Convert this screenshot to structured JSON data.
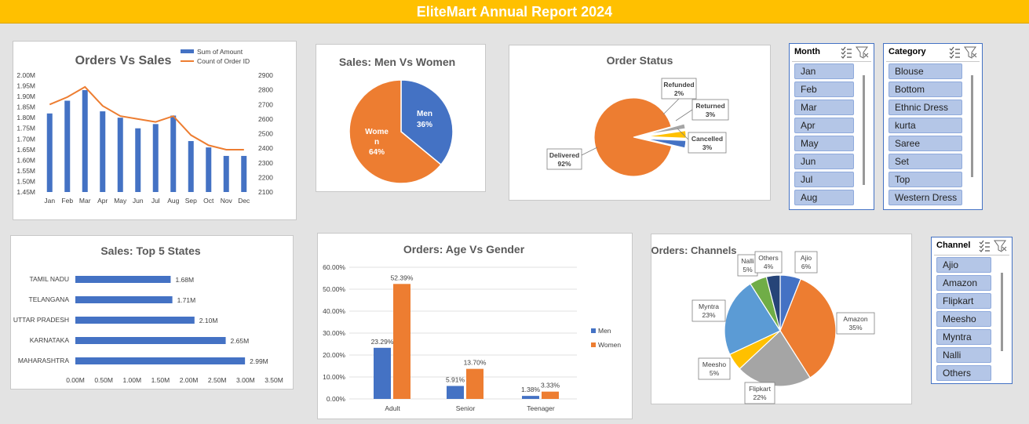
{
  "report_title": "EliteMart Annual Report 2024",
  "colors": {
    "blue": "#4472c4",
    "orange": "#ed7d31",
    "gray": "#a5a5a5",
    "yellow": "#ffc000",
    "lightblue": "#5b9bd5",
    "green": "#70ad47",
    "navy": "#264478",
    "banner": "#ffc000"
  },
  "chart_data": [
    {
      "id": "orders-vs-sales",
      "type": "bar",
      "title": "Orders Vs Sales",
      "categories": [
        "Jan",
        "Feb",
        "Mar",
        "Apr",
        "May",
        "Jun",
        "Jul",
        "Aug",
        "Sep",
        "Oct",
        "Nov",
        "Dec"
      ],
      "series": [
        {
          "name": "Sum of Amount",
          "type": "bar",
          "axis": "left",
          "values": [
            1.82,
            1.88,
            1.93,
            1.83,
            1.8,
            1.75,
            1.77,
            1.81,
            1.69,
            1.66,
            1.62,
            1.62
          ]
        },
        {
          "name": "Count of Order ID",
          "type": "line",
          "axis": "right",
          "values": [
            2700,
            2750,
            2820,
            2690,
            2620,
            2600,
            2580,
            2620,
            2490,
            2420,
            2390,
            2390
          ]
        }
      ],
      "ylim_left": [
        1.45,
        2.0
      ],
      "yticks_left": [
        "1.45M",
        "1.50M",
        "1.55M",
        "1.60M",
        "1.65M",
        "1.70M",
        "1.75M",
        "1.80M",
        "1.85M",
        "1.90M",
        "1.95M",
        "2.00M"
      ],
      "ylim_right": [
        2100,
        2900
      ],
      "yticks_right": [
        "2100",
        "2200",
        "2300",
        "2400",
        "2500",
        "2600",
        "2700",
        "2800",
        "2900"
      ],
      "legend": "top-right"
    },
    {
      "id": "men-vs-women",
      "type": "pie",
      "title": "Sales: Men Vs Women",
      "slices": [
        {
          "label_lines": [
            "Men",
            "36%"
          ],
          "value": 36
        },
        {
          "label_lines": [
            "Wome",
            "n",
            "64%"
          ],
          "value": 64
        }
      ]
    },
    {
      "id": "order-status",
      "type": "pie",
      "title": "Order Status",
      "slices": [
        {
          "label_lines": [
            "Delivered",
            "92%"
          ],
          "value": 92
        },
        {
          "label_lines": [
            "Refunded",
            "2%"
          ],
          "value": 2
        },
        {
          "label_lines": [
            "Returned",
            "3%"
          ],
          "value": 3
        },
        {
          "label_lines": [
            "Cancelled",
            "3%"
          ],
          "value": 3
        }
      ]
    },
    {
      "id": "top-5-states",
      "type": "bar",
      "orientation": "horizontal",
      "title": "Sales: Top 5 States",
      "categories": [
        "TAMIL NADU",
        "TELANGANA",
        "UTTAR PRADESH",
        "KARNATAKA",
        "MAHARASHTRA"
      ],
      "values": [
        1.68,
        1.71,
        2.1,
        2.65,
        2.99
      ],
      "data_labels": [
        "1.68M",
        "1.71M",
        "2.10M",
        "2.65M",
        "2.99M"
      ],
      "xlim": [
        0,
        3.5
      ],
      "xticks": [
        "0.00M",
        "0.50M",
        "1.00M",
        "1.50M",
        "2.00M",
        "2.50M",
        "3.00M",
        "3.50M"
      ]
    },
    {
      "id": "age-vs-gender",
      "type": "bar",
      "title": "Orders: Age Vs Gender",
      "categories": [
        "Adult",
        "Senior",
        "Teenager"
      ],
      "series": [
        {
          "name": "Men",
          "values": [
            23.29,
            5.91,
            1.38
          ],
          "labels": [
            "23.29%",
            "5.91%",
            "1.38%"
          ]
        },
        {
          "name": "Women",
          "values": [
            52.39,
            13.7,
            3.33
          ],
          "labels": [
            "52.39%",
            "13.70%",
            "3.33%"
          ]
        }
      ],
      "ylim": [
        0,
        60
      ],
      "yticks": [
        "0.00%",
        "10.00%",
        "20.00%",
        "30.00%",
        "40.00%",
        "50.00%",
        "60.00%"
      ],
      "legend": "right"
    },
    {
      "id": "channels",
      "type": "pie",
      "title": "Orders: Channels",
      "slices": [
        {
          "label_lines": [
            "Ajio",
            "6%"
          ],
          "value": 6
        },
        {
          "label_lines": [
            "Amazon",
            "35%"
          ],
          "value": 35
        },
        {
          "label_lines": [
            "Flipkart",
            "22%"
          ],
          "value": 22
        },
        {
          "label_lines": [
            "Meesho",
            "5%"
          ],
          "value": 5
        },
        {
          "label_lines": [
            "Myntra",
            "23%"
          ],
          "value": 23
        },
        {
          "label_lines": [
            "Nalli",
            "5%"
          ],
          "value": 5
        },
        {
          "label_lines": [
            "Others",
            "4%"
          ],
          "value": 4
        }
      ]
    }
  ],
  "slicers": {
    "month": {
      "title": "Month",
      "items": [
        "Jan",
        "Feb",
        "Mar",
        "Apr",
        "May",
        "Jun",
        "Jul",
        "Aug"
      ],
      "multiselect_icon": "multiselect-icon",
      "filter_icon": "clear-filter-icon"
    },
    "category": {
      "title": "Category",
      "items": [
        "Blouse",
        "Bottom",
        "Ethnic Dress",
        "kurta",
        "Saree",
        "Set",
        "Top",
        "Western Dress"
      ],
      "multiselect_icon": "multiselect-icon",
      "filter_icon": "clear-filter-icon"
    },
    "channel": {
      "title": "Channel",
      "items": [
        "Ajio",
        "Amazon",
        "Flipkart",
        "Meesho",
        "Myntra",
        "Nalli",
        "Others"
      ],
      "multiselect_icon": "multiselect-icon",
      "filter_icon": "clear-filter-icon"
    }
  }
}
